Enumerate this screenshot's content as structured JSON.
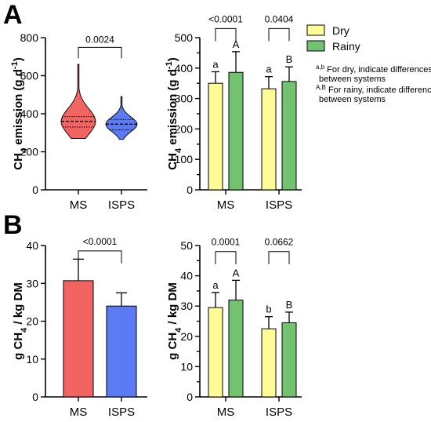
{
  "panels": {
    "A": "A",
    "B": "B"
  },
  "chart_data": [
    {
      "id": "a-left",
      "type": "violin",
      "ylabel": {
        "pre": "CH",
        "sub": "4",
        "mid": " emission (g d",
        "sup": "-1",
        "post": ")"
      },
      "ylim": [
        0,
        800
      ],
      "yticks": [
        "0",
        "200",
        "400",
        "600",
        "800"
      ],
      "categories": [
        "MS",
        "ISPS"
      ],
      "colors": [
        "#f26461",
        "#5b7bf2"
      ],
      "median": [
        360,
        345
      ],
      "q1": [
        330,
        315
      ],
      "q3": [
        385,
        370
      ],
      "min": [
        270,
        265
      ],
      "max": [
        660,
        490
      ],
      "comparisons": [
        {
          "from": 0,
          "to": 1,
          "label": "0.0024",
          "y": 790
        }
      ]
    },
    {
      "id": "a-right",
      "type": "bar",
      "ylabel": {
        "pre": "CH",
        "sub": "4",
        "mid": " emission (g d",
        "sup": "-1",
        "post": ")"
      },
      "ylim": [
        0,
        500
      ],
      "yticks": [
        "0",
        "100",
        "200",
        "300",
        "400",
        "500"
      ],
      "categories": [
        "MS",
        "ISPS"
      ],
      "series": [
        {
          "name": "Dry",
          "color": "#fffb96",
          "values": [
            350,
            332
          ],
          "errors": [
            38,
            40
          ],
          "letters": [
            "a",
            "a"
          ]
        },
        {
          "name": "Rainy",
          "color": "#72c270",
          "values": [
            386,
            356
          ],
          "errors": [
            68,
            48
          ],
          "letters": [
            "A",
            "B"
          ]
        }
      ],
      "comparisons": [
        {
          "group": 0,
          "label": "<0.0001",
          "y": 530
        },
        {
          "group": 1,
          "label": "0.0404",
          "y": 530
        }
      ]
    },
    {
      "id": "b-left",
      "type": "bar",
      "ylabel": {
        "pre": "g CH",
        "sub": "4",
        "mid": " / kg DM",
        "sup": "",
        "post": ""
      },
      "ylim": [
        0,
        40
      ],
      "yticks": [
        "0",
        "10",
        "20",
        "30",
        "40"
      ],
      "categories": [
        "MS",
        "ISPS"
      ],
      "colors": [
        "#f26461",
        "#5b7bf2"
      ],
      "values": [
        30.7,
        24.0
      ],
      "errors": [
        5.7,
        3.5
      ],
      "comparisons": [
        {
          "from": 0,
          "to": 1,
          "label": "<0.0001",
          "y": 39
        }
      ]
    },
    {
      "id": "b-right",
      "type": "bar",
      "ylabel": {
        "pre": "g CH",
        "sub": "4",
        "mid": " / kg DM",
        "sup": "",
        "post": ""
      },
      "ylim": [
        0,
        50
      ],
      "yticks": [
        "0",
        "10",
        "20",
        "30",
        "40",
        "50"
      ],
      "categories": [
        "MS",
        "ISPS"
      ],
      "series": [
        {
          "name": "Dry",
          "color": "#fffb96",
          "values": [
            29.5,
            22.5
          ],
          "errors": [
            5.0,
            4.0
          ],
          "letters": [
            "a",
            "b"
          ]
        },
        {
          "name": "Rainy",
          "color": "#72c270",
          "values": [
            32.0,
            24.5
          ],
          "errors": [
            6.5,
            3.5
          ],
          "letters": [
            "A",
            "B"
          ]
        }
      ],
      "comparisons": [
        {
          "group": 0,
          "label": "0.0001",
          "y": 48
        },
        {
          "group": 1,
          "label": "0.0662",
          "y": 48
        }
      ]
    }
  ],
  "legend": {
    "items": [
      {
        "name": "Dry",
        "color": "#fffb96"
      },
      {
        "name": "Rainy",
        "color": "#72c270"
      }
    ],
    "notes": [
      {
        "sup": "a,b",
        "line1": " For dry, indicate differences",
        "line2": "between systems"
      },
      {
        "sup": "A,B",
        "line1": " For rainy, indicate differences",
        "line2": "between systems"
      }
    ]
  }
}
